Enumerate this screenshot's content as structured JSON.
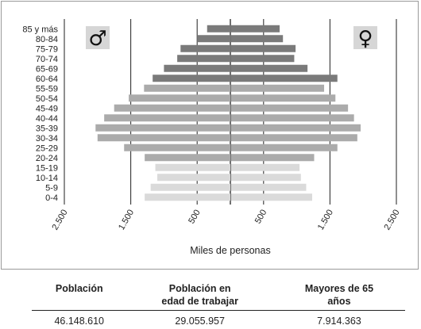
{
  "chart_data": {
    "type": "bar",
    "subtype": "population-pyramid",
    "xlabel": "Miles de personas",
    "ylabel": "",
    "xlim": [
      -2500,
      2500
    ],
    "x_ticks": [
      -2500,
      -1500,
      -500,
      500,
      1500,
      2500
    ],
    "x_tick_labels": [
      "2.500",
      "1.500",
      "500",
      "500",
      "1.500",
      "2.500"
    ],
    "grid": true,
    "legend": "none",
    "male_symbol": "♂",
    "female_symbol": "♀",
    "male_icon": "male-symbol-icon",
    "female_icon": "female-symbol-icon",
    "categories": [
      "85 y más",
      "80-84",
      "75-79",
      "70-74",
      "65-69",
      "60-64",
      "55-59",
      "50-54",
      "45-49",
      "40-44",
      "35-39",
      "30-34",
      "25-29",
      "20-24",
      "15-19",
      "10-14",
      "5-9",
      "0-4"
    ],
    "series": [
      {
        "name": "♂",
        "values": [
          350,
          500,
          750,
          800,
          1000,
          1170,
          1300,
          1530,
          1750,
          1900,
          2030,
          2000,
          1600,
          1290,
          1130,
          1100,
          1200,
          1290
        ]
      },
      {
        "name": "♀",
        "values": [
          730,
          780,
          970,
          950,
          1150,
          1600,
          1400,
          1570,
          1760,
          1850,
          1950,
          1900,
          1600,
          1250,
          1030,
          1050,
          1130,
          1220
        ]
      }
    ],
    "colors": {
      "older": "#7a7a7a",
      "middle": "#ababab",
      "young": "#dadada",
      "grid": "#333333",
      "frame": "#9a9a9a"
    }
  },
  "stats": {
    "headers": [
      {
        "line1": "Población",
        "line2": ""
      },
      {
        "line1": "Población en",
        "line2": "edad de trabajar"
      },
      {
        "line1": "Mayores de 65",
        "line2": "años"
      }
    ],
    "values": [
      "46.148.610",
      "29.055.957",
      "7.914.363"
    ]
  }
}
